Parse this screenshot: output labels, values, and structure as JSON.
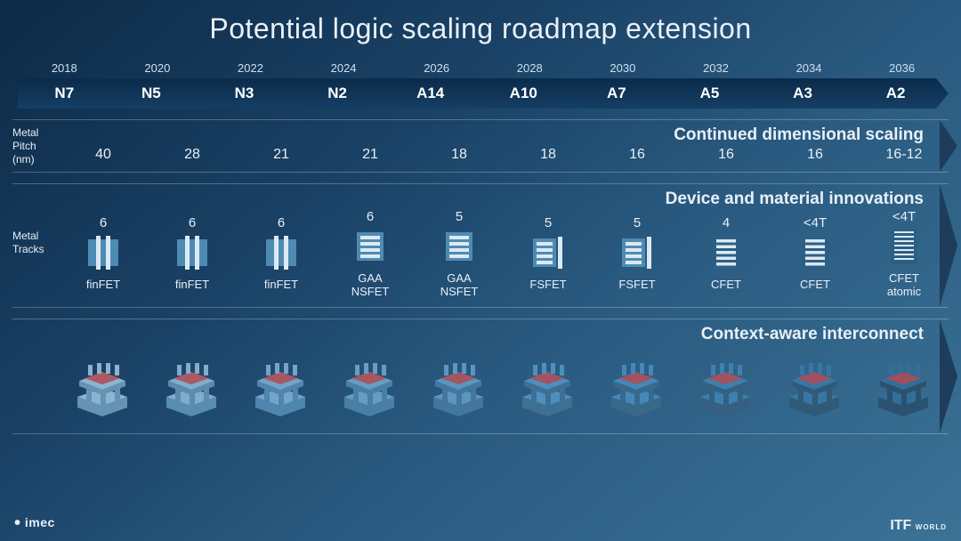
{
  "title": "Potential logic scaling roadmap extension",
  "timeline": [
    {
      "year": "2018",
      "node": "N7"
    },
    {
      "year": "2020",
      "node": "N5"
    },
    {
      "year": "2022",
      "node": "N3"
    },
    {
      "year": "2024",
      "node": "N2"
    },
    {
      "year": "2026",
      "node": "A14"
    },
    {
      "year": "2028",
      "node": "A10"
    },
    {
      "year": "2030",
      "node": "A7"
    },
    {
      "year": "2032",
      "node": "A5"
    },
    {
      "year": "2034",
      "node": "A3"
    },
    {
      "year": "2036",
      "node": "A2"
    }
  ],
  "rows": {
    "pitch": {
      "label_l1": "Metal",
      "label_l2": "Pitch",
      "label_l3": "(nm)",
      "title": "Continued dimensional scaling",
      "values": [
        "40",
        "28",
        "21",
        "21",
        "18",
        "18",
        "16",
        "16",
        "16",
        "16-12"
      ]
    },
    "tracks": {
      "label_l1": "Metal",
      "label_l2": "Tracks",
      "title": "Device and material innovations",
      "items": [
        {
          "num": "6",
          "label": "finFET",
          "icon": "finfet"
        },
        {
          "num": "6",
          "label": "finFET",
          "icon": "finfet"
        },
        {
          "num": "6",
          "label": "finFET",
          "icon": "finfet"
        },
        {
          "num": "6",
          "label": "GAA\nNSFET",
          "icon": "gaa"
        },
        {
          "num": "5",
          "label": "GAA\nNSFET",
          "icon": "gaa"
        },
        {
          "num": "5",
          "label": "FSFET",
          "icon": "fsfet"
        },
        {
          "num": "5",
          "label": "FSFET",
          "icon": "fsfet"
        },
        {
          "num": "4",
          "label": "CFET",
          "icon": "cfet"
        },
        {
          "num": "<4T",
          "label": "CFET",
          "icon": "cfet"
        },
        {
          "num": "<4T",
          "label": "CFET\natomic",
          "icon": "cfet-atomic"
        }
      ]
    },
    "interconnect": {
      "title": "Context-aware interconnect",
      "count": 10,
      "colors": {
        "light": "#9fc6e0",
        "dark": "#2a5a80",
        "accent": "#b04a52"
      }
    }
  },
  "style": {
    "chevron_grad_top": "#0b2b4a",
    "chevron_grad_bot": "#153e64",
    "line_color": "rgba(255,255,255,0.25)",
    "title_fontsize": 32,
    "row_title_fontsize": 19,
    "icon_box": "#4e8bb3",
    "icon_box_dark": "#2c5f84",
    "icon_line": "#dce9f3",
    "arrow_fill": "#1e3d5a"
  },
  "footer": {
    "left_brand": "imec",
    "right_brand": "ITF",
    "right_sub": "WORLD"
  }
}
